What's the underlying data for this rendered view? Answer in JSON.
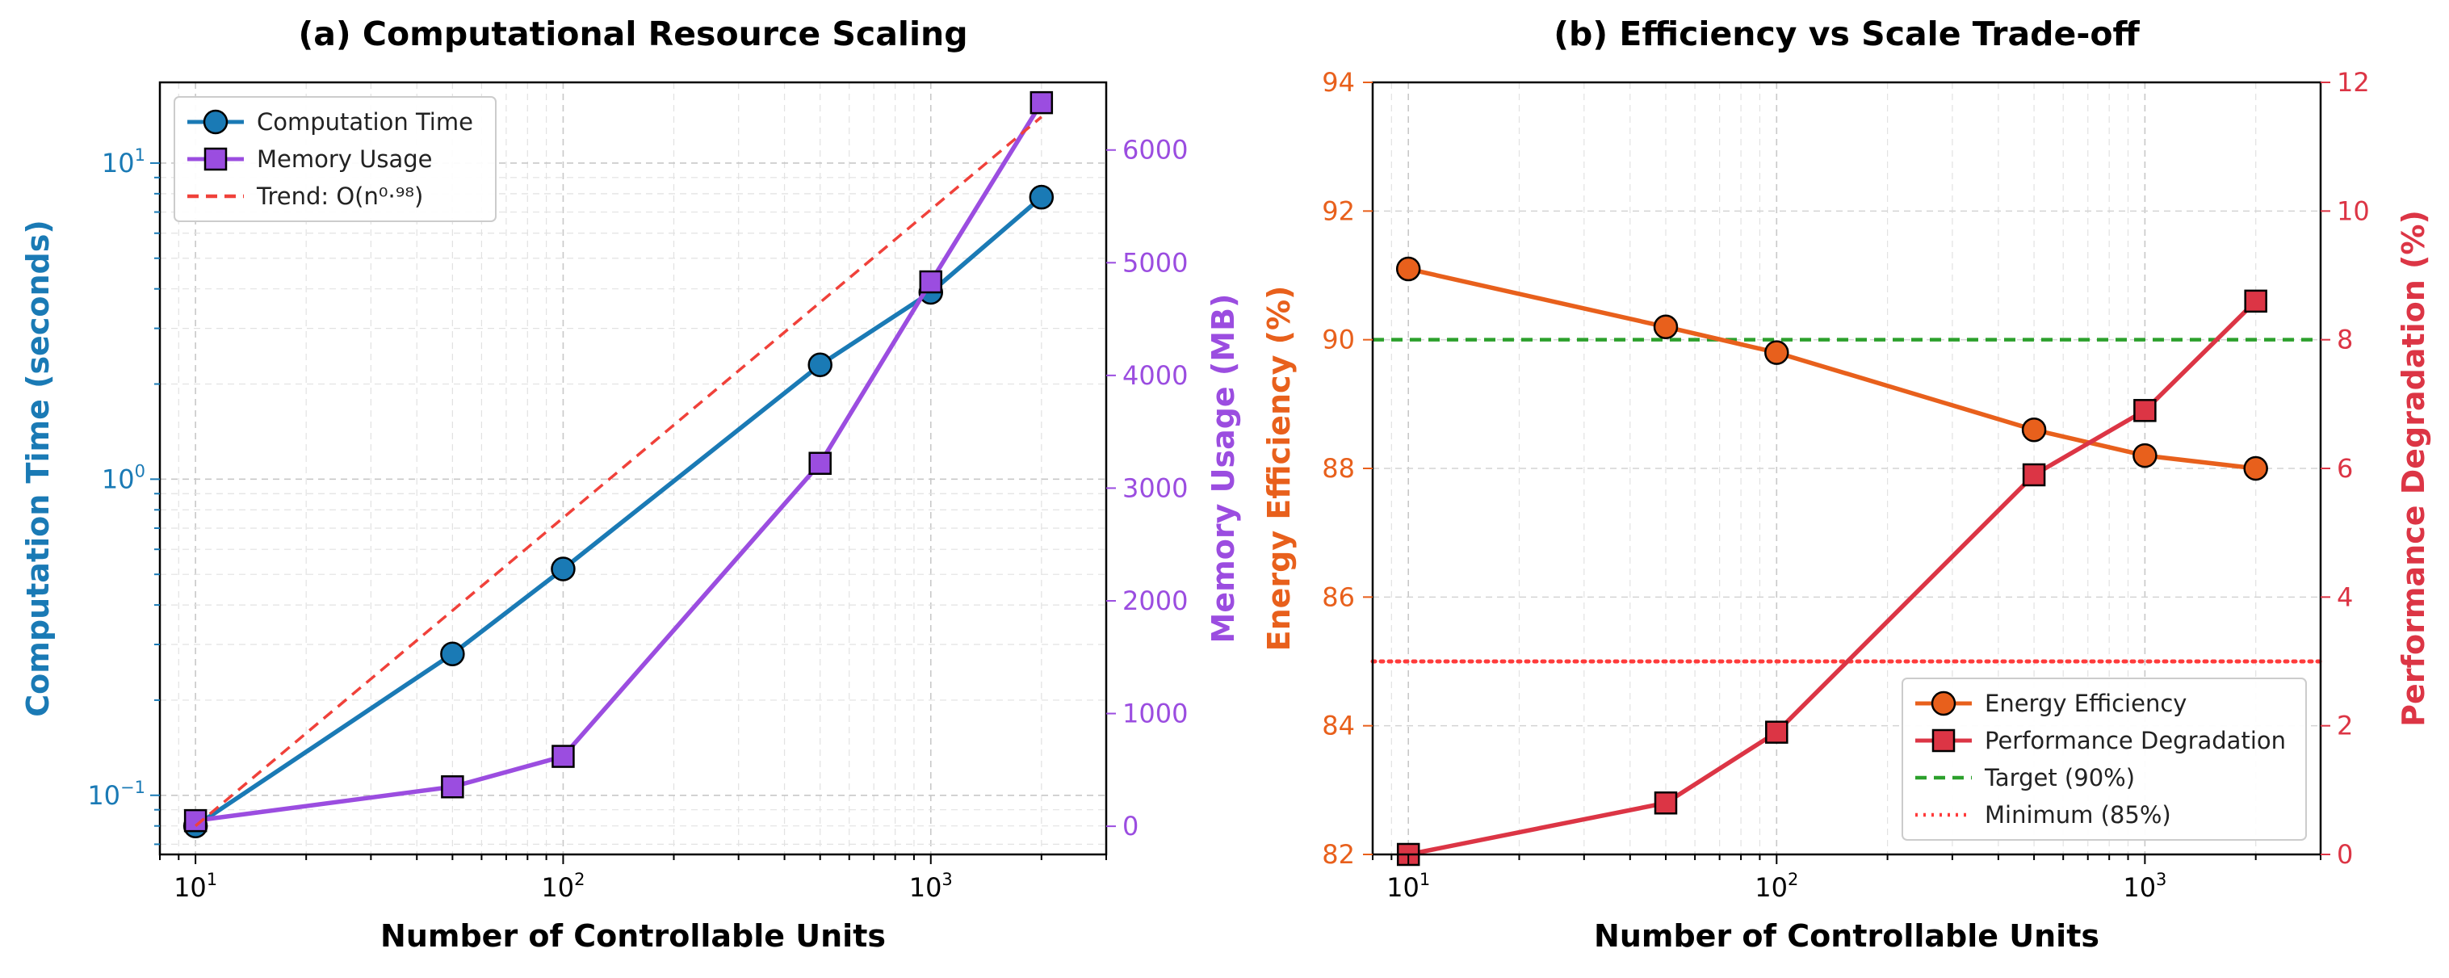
{
  "chart_data": [
    {
      "type": "line",
      "title": "(a) Computational Resource Scaling",
      "xlabel": "Number of Controllable Units",
      "ylabel": "Computation Time (seconds)",
      "y2label": "Memory Usage (MB)",
      "xscale": "log",
      "yscale": "log",
      "xlim": [
        8,
        3000
      ],
      "ylim": [
        0.065,
        18
      ],
      "y2lim": [
        -250,
        6600
      ],
      "x_ticks": [
        {
          "base": "10",
          "exp": "1",
          "value": 10
        },
        {
          "base": "10",
          "exp": "2",
          "value": 100
        },
        {
          "base": "10",
          "exp": "3",
          "value": 1000
        }
      ],
      "y_ticks": [
        {
          "base": "10",
          "exp": "−1",
          "value": 0.1
        },
        {
          "base": "10",
          "exp": "0",
          "value": 1
        },
        {
          "base": "10",
          "exp": "1",
          "value": 10
        }
      ],
      "y2_ticks": [
        "0",
        "1000",
        "2000",
        "3000",
        "4000",
        "5000",
        "6000"
      ],
      "grid": true,
      "legend_position": "top-left",
      "x": [
        10,
        50,
        100,
        500,
        1000,
        2000
      ],
      "series": [
        {
          "name": "Computation Time",
          "axis": "left",
          "values": [
            0.08,
            0.28,
            0.52,
            2.3,
            3.9,
            7.8
          ],
          "color": "#1a7ab5",
          "marker": "circle",
          "style": "solid"
        },
        {
          "name": "Memory Usage",
          "axis": "right",
          "values": [
            50,
            350,
            620,
            3220,
            4830,
            6420
          ],
          "color": "#9b4de0",
          "marker": "square",
          "style": "solid"
        },
        {
          "name": "Trend: O(n⁰·⁹⁸)",
          "axis": "left",
          "x": [
            10,
            2000
          ],
          "values": [
            0.08,
            14.0
          ],
          "color": "#f0413a",
          "marker": "none",
          "style": "dashed"
        }
      ]
    },
    {
      "type": "line",
      "title": "(b) Efficiency vs Scale Trade-off",
      "xlabel": "Number of Controllable Units",
      "ylabel": "Energy Efficiency (%)",
      "y2label": "Performance Degradation (%)",
      "xscale": "log",
      "xlim": [
        8,
        3000
      ],
      "ylim": [
        82,
        94
      ],
      "y2lim": [
        0,
        12
      ],
      "x_ticks": [
        {
          "base": "10",
          "exp": "1",
          "value": 10
        },
        {
          "base": "10",
          "exp": "2",
          "value": 100
        },
        {
          "base": "10",
          "exp": "3",
          "value": 1000
        }
      ],
      "y_ticks": [
        "82",
        "84",
        "86",
        "88",
        "90",
        "92",
        "94"
      ],
      "y2_ticks": [
        "0",
        "2",
        "4",
        "6",
        "8",
        "10",
        "12"
      ],
      "grid": true,
      "legend_position": "bottom-right",
      "x": [
        10,
        50,
        100,
        500,
        1000,
        2000
      ],
      "series": [
        {
          "name": "Energy Efficiency",
          "axis": "left",
          "values": [
            91.1,
            90.2,
            89.8,
            88.6,
            88.2,
            88.0
          ],
          "color": "#e8601c",
          "marker": "circle",
          "style": "solid"
        },
        {
          "name": "Performance Degradation",
          "axis": "right",
          "values": [
            0.0,
            0.8,
            1.9,
            5.9,
            6.9,
            8.6
          ],
          "color": "#dc3545",
          "marker": "square",
          "style": "solid"
        }
      ],
      "reference_lines": [
        {
          "name": "Target (90%)",
          "axis": "left",
          "value": 90,
          "color": "#2ca02c",
          "style": "dashed"
        },
        {
          "name": "Minimum (85%)",
          "axis": "left",
          "value": 85,
          "color": "#ff3b3b",
          "style": "dotted"
        }
      ]
    }
  ]
}
